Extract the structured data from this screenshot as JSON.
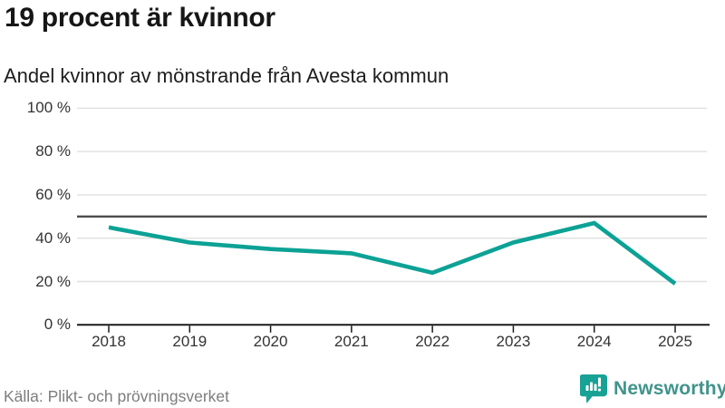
{
  "header": {
    "title": "19 procent är kvinnor",
    "subtitle": "Andel kvinnor av mönstrande från Avesta kommun"
  },
  "chart_data": {
    "type": "line",
    "x": [
      2018,
      2019,
      2020,
      2021,
      2022,
      2023,
      2024,
      2025
    ],
    "series": [
      {
        "name": "Andel kvinnor av mönstrande från Avesta kommun",
        "values": [
          45,
          38,
          35,
          33,
          24,
          38,
          47,
          19
        ]
      }
    ],
    "unit": "%",
    "ylim": [
      0,
      100
    ],
    "yticks": [
      0,
      20,
      40,
      60,
      80,
      100
    ],
    "ytick_labels": [
      "0 %",
      "20 %",
      "40 %",
      "60 %",
      "80 %",
      "100 %"
    ],
    "reference_line": {
      "value": 50
    },
    "grid": true,
    "legend": "none",
    "line_color": "#0ca295",
    "gridline_color": "#e0e0e0",
    "reference_line_color": "#4d4d4d",
    "axis_color": "#1a1a1a"
  },
  "footer": {
    "source": "Källa: Plikt- och prövningsverket"
  },
  "logo": {
    "text": "Newsworthy",
    "mark_color": "#18a295",
    "text_color": "#3f948b",
    "mark_icon": "bar-chart-exclamation-bubble"
  }
}
